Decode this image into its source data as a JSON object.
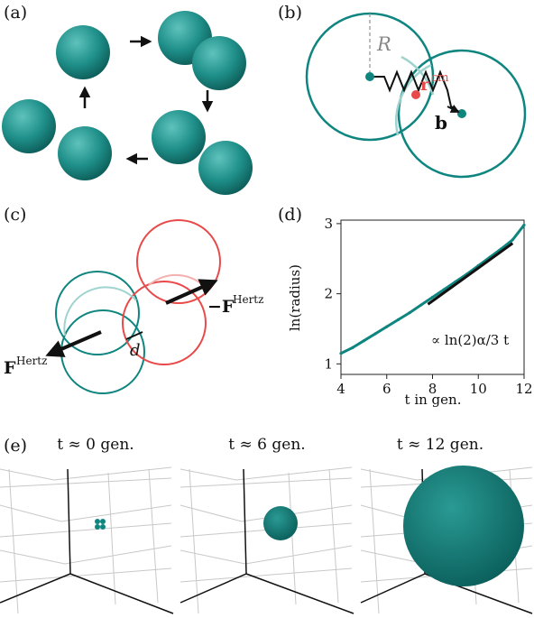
{
  "panels": {
    "a": {
      "label": "(a)"
    },
    "b": {
      "label": "(b)",
      "radius_symbol": "R",
      "rcm_symbol": "r",
      "rcm_sup": "cm",
      "b_symbol": "b"
    },
    "c": {
      "label": "(c)",
      "d_symbol": "d",
      "force_left": "F",
      "force_left_sup": "Hertz",
      "force_right": "−F",
      "force_right_sup": "Hertz"
    },
    "d": {
      "label": "(d)",
      "annotation": "∝ ln(2)α/3 t"
    },
    "e": {
      "label": "(e)",
      "times": [
        "t ≈ 0 gen.",
        "t ≈ 6 gen.",
        "t ≈ 12 gen."
      ]
    }
  },
  "colors": {
    "teal": "#0f8580",
    "teal_light": "#9fd3d0",
    "red": "#e84a4a",
    "red_light": "#f4b0b0",
    "grid": "#c8c8c8"
  },
  "chart_data": {
    "type": "line",
    "xlabel": "t in gen.",
    "ylabel": "ln(radius)",
    "xlim": [
      4,
      12
    ],
    "ylim": [
      0.85,
      3.05
    ],
    "xticks": [
      4,
      6,
      8,
      10,
      12
    ],
    "yticks": [
      1,
      2,
      3
    ],
    "series": [
      {
        "x": [
          4.0,
          4.5,
          5.0,
          5.5,
          6.0,
          6.5,
          7.0,
          7.5,
          8.0,
          8.5,
          9.0,
          9.5,
          10.0,
          10.5,
          11.0,
          11.5,
          12.0
        ],
        "values": [
          1.15,
          1.23,
          1.33,
          1.43,
          1.53,
          1.63,
          1.73,
          1.84,
          1.95,
          2.06,
          2.17,
          2.28,
          2.4,
          2.52,
          2.64,
          2.77,
          2.98
        ]
      }
    ],
    "reference_line": {
      "x": [
        7.8,
        11.5
      ],
      "values": [
        1.85,
        2.72
      ]
    }
  }
}
